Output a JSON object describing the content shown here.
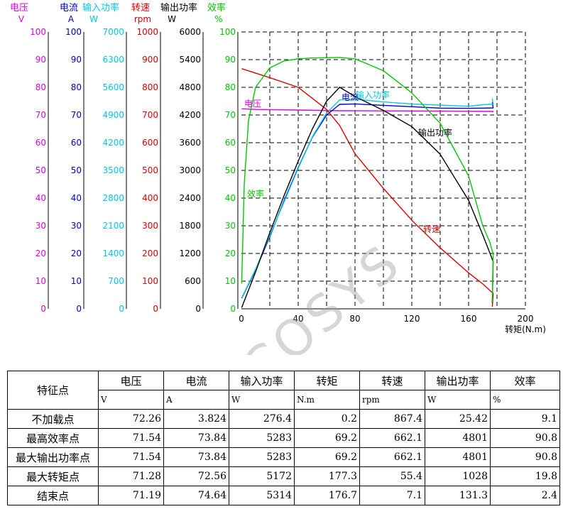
{
  "axes": [
    {
      "name": "电压",
      "unit": "V",
      "color": "#e000e0",
      "ticks": [
        "0",
        "10",
        "20",
        "30",
        "40",
        "50",
        "60",
        "70",
        "80",
        "90",
        "100"
      ]
    },
    {
      "name": "电流",
      "unit": "A",
      "color": "#0000c8",
      "ticks": [
        "0",
        "10",
        "20",
        "30",
        "40",
        "50",
        "60",
        "70",
        "80",
        "90",
        "100"
      ]
    },
    {
      "name": "输入功率",
      "unit": "W",
      "color": "#00c8e6",
      "ticks": [
        "0",
        "700",
        "1400",
        "2100",
        "2800",
        "3500",
        "4200",
        "4900",
        "5600",
        "6300",
        "7000"
      ]
    },
    {
      "name": "转速",
      "unit": "rpm",
      "color": "#e00000",
      "ticks": [
        "0",
        "100",
        "200",
        "300",
        "400",
        "500",
        "600",
        "700",
        "800",
        "900",
        "1000"
      ]
    },
    {
      "name": "输出功率",
      "unit": "W",
      "color": "#000000",
      "ticks": [
        "0",
        "600",
        "1200",
        "1800",
        "2400",
        "3000",
        "3600",
        "4200",
        "4800",
        "5400",
        "6000"
      ]
    },
    {
      "name": "效率",
      "unit": "%",
      "color": "#00c800",
      "ticks": [
        "0",
        "10",
        "20",
        "30",
        "40",
        "50",
        "60",
        "70",
        "80",
        "90",
        "100"
      ]
    }
  ],
  "x_axis": {
    "label": "转矩(N.m)",
    "ticks": [
      "0",
      "40",
      "80",
      "120",
      "160",
      "200"
    ]
  },
  "curve_labels": {
    "voltage": "电压",
    "current": "电流",
    "input_power": "输入功率",
    "speed": "转速",
    "output_power": "输出功率",
    "efficiency": "效率"
  },
  "watermark": "SiAECOSYS",
  "chart_data": {
    "type": "line",
    "xlabel": "转矩(N.m)",
    "xlim": [
      0,
      200
    ],
    "grid": true,
    "series": [
      {
        "name": "电压",
        "unit": "V",
        "color": "#e000e0",
        "ylim": [
          0,
          100
        ],
        "x": [
          0.2,
          10,
          40,
          69.2,
          100,
          140,
          177.3,
          176.7
        ],
        "y": [
          72.26,
          72.0,
          71.8,
          71.54,
          71.5,
          71.4,
          71.28,
          71.19
        ]
      },
      {
        "name": "电流",
        "unit": "A",
        "color": "#0000c8",
        "ylim": [
          0,
          100
        ],
        "x": [
          0.2,
          10,
          20,
          30,
          40,
          50,
          60,
          69.2,
          80,
          100,
          120,
          140,
          160,
          170,
          177.3,
          176.7
        ],
        "y": [
          3.824,
          14,
          26,
          39,
          51,
          62,
          70,
          73.84,
          74,
          73.5,
          73,
          72.5,
          72.4,
          72.5,
          72.56,
          74.64
        ]
      },
      {
        "name": "输入功率",
        "unit": "W",
        "color": "#00c8e6",
        "ylim": [
          0,
          7000
        ],
        "x": [
          0.2,
          10,
          20,
          30,
          40,
          50,
          60,
          69.2,
          80,
          100,
          120,
          140,
          160,
          170,
          177.3,
          176.7
        ],
        "y": [
          276.4,
          1000,
          1850,
          2700,
          3550,
          4350,
          4950,
          5283,
          5300,
          5230,
          5180,
          5150,
          5120,
          5160,
          5172,
          5314
        ]
      },
      {
        "name": "转速",
        "unit": "rpm",
        "color": "#e00000",
        "ylim": [
          0,
          1000
        ],
        "x": [
          0.2,
          20,
          40,
          50,
          60,
          69.2,
          80,
          100,
          120,
          140,
          160,
          170,
          177.3,
          176.7
        ],
        "y": [
          867.4,
          835,
          800,
          760,
          720,
          662.1,
          560,
          435,
          320,
          220,
          130,
          90,
          55.4,
          7.1
        ]
      },
      {
        "name": "输出功率",
        "unit": "W",
        "color": "#000000",
        "ylim": [
          0,
          6000
        ],
        "x": [
          0.2,
          10,
          20,
          30,
          40,
          50,
          60,
          69.2,
          80,
          100,
          120,
          140,
          160,
          170,
          177.3,
          176.7
        ],
        "y": [
          25.42,
          800,
          1650,
          2450,
          3200,
          3900,
          4500,
          4801,
          4600,
          4300,
          3950,
          3350,
          2350,
          1600,
          1028,
          131.3
        ]
      },
      {
        "name": "效率",
        "unit": "%",
        "color": "#00c800",
        "ylim": [
          0,
          100
        ],
        "x": [
          0.2,
          2,
          5,
          10,
          20,
          30,
          40,
          50,
          69.2,
          80,
          100,
          120,
          140,
          160,
          170,
          175,
          177.3,
          176.7
        ],
        "y": [
          9.1,
          45,
          68,
          80,
          87,
          89.5,
          90.3,
          90.6,
          90.8,
          90.3,
          86,
          78,
          67,
          48,
          30,
          24,
          19.8,
          2.4
        ]
      }
    ]
  },
  "table": {
    "header": [
      "特征点",
      "电压",
      "电流",
      "输入功率",
      "转矩",
      "转速",
      "输出功率",
      "效率"
    ],
    "units": [
      "V",
      "A",
      "W",
      "N.m",
      "rpm",
      "W",
      "%"
    ],
    "rows": [
      {
        "name": "不加载点",
        "values": [
          "72.26",
          "3.824",
          "276.4",
          "0.2",
          "867.4",
          "25.42",
          "9.1"
        ]
      },
      {
        "name": "最高效率点",
        "values": [
          "71.54",
          "73.84",
          "5283",
          "69.2",
          "662.1",
          "4801",
          "90.8"
        ]
      },
      {
        "name": "最大输出功率点",
        "values": [
          "71.54",
          "73.84",
          "5283",
          "69.2",
          "662.1",
          "4801",
          "90.8"
        ]
      },
      {
        "name": "最大转矩点",
        "values": [
          "71.28",
          "72.56",
          "5172",
          "177.3",
          "55.4",
          "1028",
          "19.8"
        ]
      },
      {
        "name": "结束点",
        "values": [
          "71.19",
          "74.64",
          "5314",
          "176.7",
          "7.1",
          "131.3",
          "2.4"
        ]
      }
    ]
  }
}
